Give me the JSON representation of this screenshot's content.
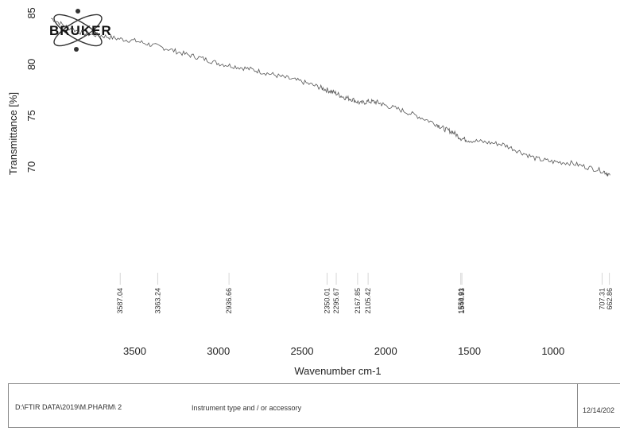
{
  "logo": {
    "text": "BRUKER"
  },
  "footer": {
    "path": "D:\\FTIR DATA\\2019\\M.PHARM\\ 2",
    "instrument": "Instrument type and / or accessory",
    "date": "12/14/202"
  },
  "chart_data": {
    "type": "line",
    "title": "",
    "xlabel": "Wavenumber cm-1",
    "ylabel": "Transmittance [%]",
    "x_reversed": true,
    "xlim": [
      4020,
      600
    ],
    "ylim": [
      65.5,
      85.5
    ],
    "xticks": [
      3500,
      3000,
      2500,
      2000,
      1500,
      1000
    ],
    "yticks": [
      85,
      80,
      75,
      70
    ],
    "peak_labels": [
      "3587.04",
      "3363.24",
      "2936.66",
      "2350.01",
      "2295.67",
      "2167.85",
      "2105.42",
      "1544.93",
      "1550.91",
      "707.31",
      "662.86"
    ],
    "peak_positions": [
      3587.04,
      3363.24,
      2936.66,
      2350.01,
      2295.67,
      2167.85,
      2105.42,
      1544.93,
      1550.91,
      707.31,
      662.86
    ],
    "series": [
      {
        "color": "#555555",
        "x": [
          4000,
          3900,
          3800,
          3700,
          3600,
          3500,
          3400,
          3300,
          3200,
          3100,
          3000,
          2900,
          2800,
          2700,
          2600,
          2500,
          2400,
          2350,
          2300,
          2250,
          2200,
          2150,
          2100,
          2050,
          2000,
          1900,
          1800,
          1700,
          1650,
          1600,
          1550,
          1500,
          1400,
          1300,
          1200,
          1100,
          1000,
          900,
          800,
          700,
          660
        ],
        "y": [
          84.5,
          83.6,
          83.0,
          82.8,
          82.5,
          82.3,
          81.9,
          81.5,
          81.0,
          80.6,
          80.1,
          79.8,
          79.5,
          79.1,
          78.7,
          78.3,
          77.8,
          77.5,
          77.2,
          76.8,
          76.6,
          76.2,
          76.4,
          76.3,
          76.0,
          75.5,
          74.9,
          74.2,
          73.7,
          73.4,
          72.8,
          72.6,
          72.4,
          72.2,
          71.5,
          70.8,
          70.5,
          70.4,
          70.0,
          69.6,
          69.2
        ]
      }
    ]
  }
}
